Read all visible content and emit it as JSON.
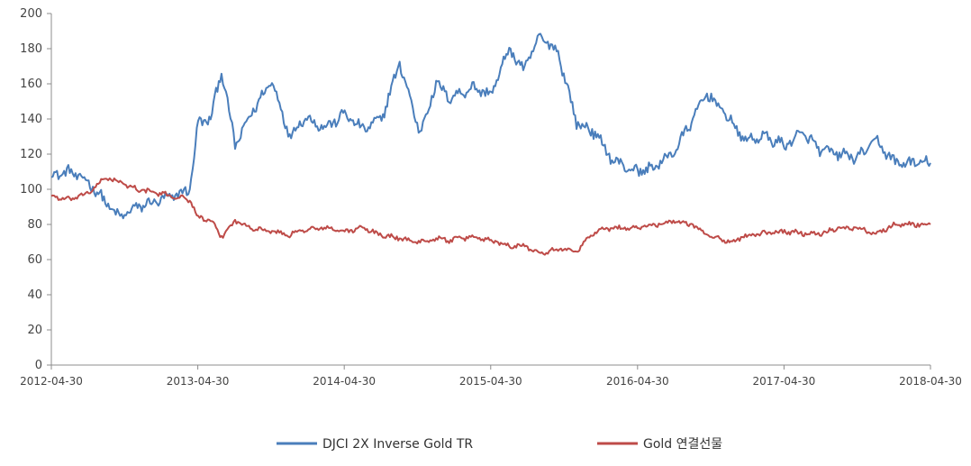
{
  "chart_data": {
    "type": "line",
    "title": "",
    "xlabel": "",
    "ylabel": "",
    "ylim": [
      0,
      200
    ],
    "yticks": [
      0,
      20,
      40,
      60,
      80,
      100,
      120,
      140,
      160,
      180,
      200
    ],
    "yticklabels": [
      "0",
      "20",
      "40",
      "60",
      "80",
      "100",
      "120",
      "140",
      "160",
      "180",
      "200"
    ],
    "xlim": [
      "2012-04-30",
      "2018-04-30"
    ],
    "xticklabels": [
      "2012-04-30",
      "2013-04-30",
      "2014-04-30",
      "2015-04-30",
      "2016-04-30",
      "2017-04-30",
      "2018-04-30"
    ],
    "grid": false,
    "legend_position": "bottom",
    "series": [
      {
        "name": "DJCI 2X Inverse Gold TR",
        "color": "#4a7ebb",
        "x": [
          "2012-04-30",
          "2012-06-15",
          "2012-08-01",
          "2012-09-15",
          "2012-10-15",
          "2012-12-01",
          "2013-01-15",
          "2013-03-01",
          "2013-04-10",
          "2013-05-01",
          "2013-06-01",
          "2013-06-28",
          "2013-08-01",
          "2013-09-15",
          "2013-11-01",
          "2013-12-15",
          "2014-01-20",
          "2014-03-15",
          "2014-05-01",
          "2014-06-15",
          "2014-08-01",
          "2014-09-15",
          "2014-11-05",
          "2014-12-15",
          "2015-01-20",
          "2015-03-15",
          "2015-05-01",
          "2015-06-15",
          "2015-07-20",
          "2015-09-01",
          "2015-10-15",
          "2015-11-30",
          "2016-01-15",
          "2016-03-01",
          "2016-04-30",
          "2016-06-15",
          "2016-08-01",
          "2016-09-15",
          "2016-10-20",
          "2016-12-15",
          "2017-01-20",
          "2017-03-15",
          "2017-05-01",
          "2017-06-15",
          "2017-08-01",
          "2017-09-15",
          "2017-11-01",
          "2017-12-15",
          "2018-02-01",
          "2018-04-30"
        ],
        "values": [
          108,
          110,
          104,
          92,
          84,
          90,
          93,
          96,
          100,
          138,
          140,
          168,
          125,
          145,
          162,
          130,
          141,
          135,
          143,
          134,
          140,
          172,
          132,
          160,
          152,
          158,
          154,
          180,
          168,
          187,
          178,
          138,
          132,
          116,
          110,
          113,
          122,
          140,
          155,
          140,
          128,
          130,
          125,
          132,
          122,
          120,
          118,
          128,
          115,
          115
        ]
      },
      {
        "name": "Gold 연결선물",
        "color": "#be4b48",
        "x": [
          "2012-04-30",
          "2012-06-15",
          "2012-08-01",
          "2012-09-15",
          "2012-10-15",
          "2012-12-01",
          "2013-01-15",
          "2013-03-01",
          "2013-04-10",
          "2013-05-01",
          "2013-06-01",
          "2013-06-28",
          "2013-08-01",
          "2013-09-15",
          "2013-11-01",
          "2013-12-15",
          "2014-01-20",
          "2014-03-15",
          "2014-05-01",
          "2014-06-15",
          "2014-08-01",
          "2014-09-15",
          "2014-11-05",
          "2014-12-15",
          "2015-01-20",
          "2015-03-15",
          "2015-05-01",
          "2015-06-15",
          "2015-07-20",
          "2015-09-01",
          "2015-10-15",
          "2015-11-30",
          "2016-01-15",
          "2016-03-01",
          "2016-04-30",
          "2016-06-15",
          "2016-08-01",
          "2016-09-15",
          "2016-10-20",
          "2016-12-15",
          "2017-01-20",
          "2017-03-15",
          "2017-05-01",
          "2017-06-15",
          "2017-08-01",
          "2017-09-15",
          "2017-11-01",
          "2017-12-15",
          "2018-02-01",
          "2018-04-30"
        ],
        "values": [
          96,
          94,
          98,
          107,
          104,
          100,
          98,
          96,
          94,
          84,
          82,
          73,
          82,
          78,
          76,
          74,
          77,
          78,
          76,
          78,
          74,
          72,
          70,
          72,
          71,
          73,
          71,
          68,
          68,
          64,
          66,
          65,
          76,
          78,
          78,
          80,
          82,
          80,
          74,
          70,
          73,
          75,
          76,
          75,
          75,
          78,
          78,
          75,
          80,
          80
        ]
      }
    ]
  }
}
